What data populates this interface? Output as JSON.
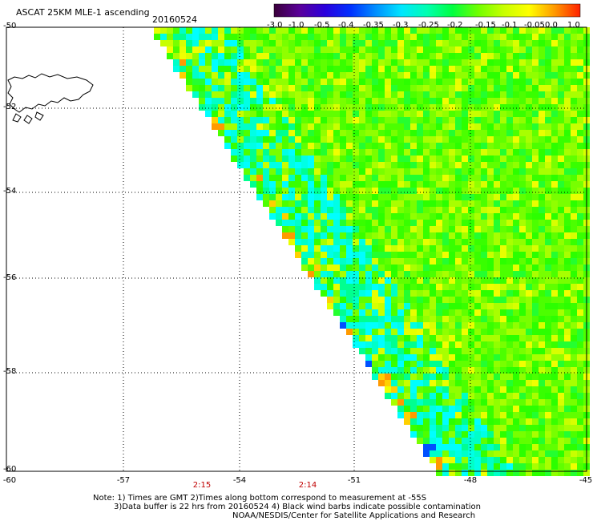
{
  "header": {
    "title": "ASCAT 25KM MLE-1 ascending",
    "date": "20160524"
  },
  "color_scale": {
    "labels": [
      "-3.0",
      "-1.0",
      "-0.5",
      "-0.4",
      "-0.35",
      "-0.3",
      "-0.25",
      "-0.2",
      "-0.15",
      "-0.1",
      "-0.05",
      "0.0",
      "1.0"
    ],
    "colors": [
      "#3a003a",
      "#5a009a",
      "#2a00dd",
      "#0030ff",
      "#0090ff",
      "#00e6ff",
      "#00ffb0",
      "#00ff40",
      "#70ff00",
      "#c8ff00",
      "#ffff00",
      "#ff9900",
      "#ff2000"
    ]
  },
  "axes": {
    "lat_labels": [
      "-50",
      "-52",
      "-54",
      "-56",
      "-58",
      "-60"
    ],
    "lon_labels": [
      "-60",
      "-57",
      "-54",
      "-51",
      "-48",
      "-45"
    ]
  },
  "times": [
    "2:15",
    "2:14"
  ],
  "notes": [
    "Note: 1) Times are GMT 2)Times along bottom correspond to measurement at -55S",
    "3)Data buffer is 22 hrs from 20160524 4) Black wind barbs indicate possible contamination",
    "NOAA/NESDIS/Center for Satellite Applications and Research"
  ]
}
